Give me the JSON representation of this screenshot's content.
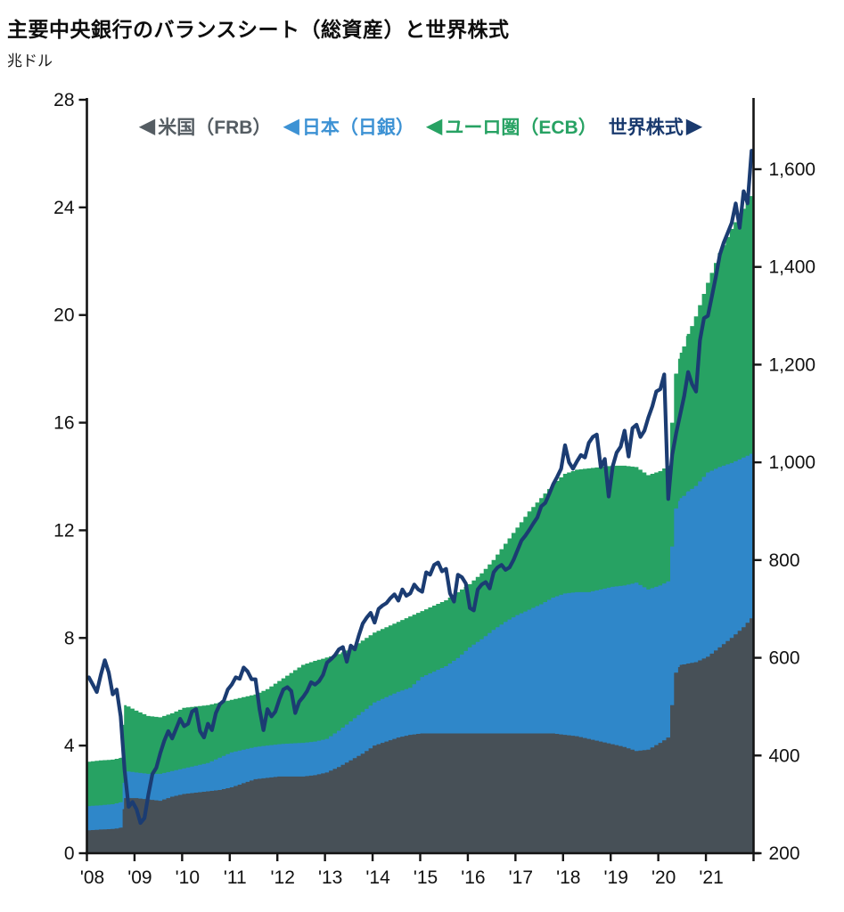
{
  "header": {
    "title": "主要中央銀行のバランスシート（総資産）と世界株式",
    "unit_label": "兆ドル"
  },
  "legend": {
    "items": [
      {
        "id": "us-frb",
        "marker_glyph": "◀",
        "marker_side": "before",
        "label": "米国（FRB）",
        "color": "#555d63"
      },
      {
        "id": "japan-boj",
        "marker_glyph": "◀",
        "marker_side": "before",
        "label": "日本（日銀）",
        "color": "#3d92d4"
      },
      {
        "id": "euro-ecb",
        "marker_glyph": "◀",
        "marker_side": "before",
        "label": "ユーロ圏（ECB）",
        "color": "#27a263"
      },
      {
        "id": "world-equity",
        "marker_glyph": "▶",
        "marker_side": "after",
        "label": "世界株式",
        "color": "#1a3a6e"
      }
    ]
  },
  "chart_data": {
    "type": "area",
    "title": "主要中央銀行のバランスシート（総資産）と世界株式",
    "subtitle_unit": "兆ドル",
    "stack": {
      "unit": "trillion USD (left axis)",
      "x": [
        2008.0,
        2008.25,
        2008.5,
        2008.7,
        2008.78,
        2009.0,
        2009.25,
        2009.5,
        2009.75,
        2010.0,
        2010.25,
        2010.5,
        2010.75,
        2011.0,
        2011.25,
        2011.5,
        2011.75,
        2012.0,
        2012.25,
        2012.5,
        2012.75,
        2013.0,
        2013.25,
        2013.5,
        2013.75,
        2014.0,
        2014.25,
        2014.5,
        2014.75,
        2015.0,
        2015.25,
        2015.5,
        2015.75,
        2016.0,
        2016.25,
        2016.5,
        2016.75,
        2017.0,
        2017.25,
        2017.5,
        2017.75,
        2018.0,
        2018.25,
        2018.5,
        2018.75,
        2019.0,
        2019.25,
        2019.5,
        2019.75,
        2020.0,
        2020.17,
        2020.25,
        2020.33,
        2020.45,
        2020.6,
        2020.75,
        2021.0,
        2021.25,
        2021.5,
        2021.75,
        2021.98
      ],
      "series": [
        {
          "name": "米国（FRB）",
          "color": "#475057",
          "values": [
            0.85,
            0.88,
            0.9,
            0.95,
            2.05,
            2.05,
            2.0,
            1.95,
            2.1,
            2.2,
            2.25,
            2.3,
            2.35,
            2.45,
            2.6,
            2.75,
            2.8,
            2.85,
            2.85,
            2.85,
            2.9,
            3.0,
            3.2,
            3.45,
            3.7,
            4.0,
            4.15,
            4.3,
            4.4,
            4.45,
            4.45,
            4.45,
            4.45,
            4.45,
            4.45,
            4.45,
            4.45,
            4.45,
            4.45,
            4.45,
            4.45,
            4.4,
            4.35,
            4.25,
            4.15,
            4.05,
            3.95,
            3.8,
            3.85,
            4.1,
            4.3,
            5.5,
            6.7,
            7.0,
            7.05,
            7.1,
            7.3,
            7.65,
            8.0,
            8.4,
            8.85
          ]
        },
        {
          "name": "日本（日銀）",
          "color": "#2f87c9",
          "values": [
            0.9,
            0.9,
            0.92,
            0.95,
            1.0,
            0.95,
            0.95,
            1.0,
            0.95,
            0.95,
            1.0,
            1.05,
            1.2,
            1.3,
            1.25,
            1.2,
            1.2,
            1.2,
            1.23,
            1.25,
            1.25,
            1.25,
            1.35,
            1.45,
            1.55,
            1.6,
            1.65,
            1.7,
            1.75,
            2.1,
            2.3,
            2.5,
            2.8,
            3.2,
            3.5,
            3.85,
            4.15,
            4.4,
            4.6,
            4.8,
            5.05,
            5.25,
            5.35,
            5.45,
            5.65,
            5.85,
            6.0,
            6.25,
            5.95,
            5.85,
            5.8,
            5.9,
            6.1,
            6.2,
            6.4,
            6.55,
            6.85,
            6.7,
            6.5,
            6.3,
            6.05
          ]
        },
        {
          "name": "ユーロ圏（ECB）",
          "color": "#27a263",
          "values": [
            1.65,
            1.67,
            1.66,
            1.65,
            2.45,
            2.3,
            2.15,
            2.1,
            2.15,
            2.25,
            2.2,
            2.15,
            2.05,
            1.95,
            1.95,
            1.95,
            2.1,
            2.35,
            2.62,
            2.9,
            3.0,
            3.02,
            2.85,
            2.7,
            2.65,
            2.6,
            2.6,
            2.6,
            2.65,
            2.45,
            2.45,
            2.45,
            2.45,
            2.35,
            2.45,
            2.6,
            2.9,
            3.25,
            3.65,
            3.95,
            4.2,
            4.45,
            4.55,
            4.6,
            4.55,
            4.5,
            4.45,
            4.3,
            4.25,
            4.25,
            4.3,
            4.6,
            5.0,
            5.4,
            5.85,
            6.3,
            7.05,
            7.95,
            8.7,
            9.25,
            9.7
          ]
        }
      ]
    },
    "line": {
      "name": "世界株式",
      "axis": "right",
      "color": "#1b3c72",
      "x_start": 2008.042,
      "x_step_years": 0.083333,
      "values": [
        560,
        545,
        530,
        565,
        595,
        570,
        525,
        535,
        480,
        370,
        295,
        305,
        290,
        262,
        272,
        320,
        362,
        375,
        405,
        430,
        450,
        435,
        455,
        475,
        460,
        465,
        490,
        495,
        450,
        437,
        465,
        452,
        487,
        505,
        512,
        535,
        545,
        560,
        557,
        580,
        572,
        556,
        556,
        495,
        452,
        495,
        480,
        490,
        515,
        535,
        540,
        532,
        487,
        510,
        520,
        532,
        550,
        545,
        552,
        565,
        590,
        597,
        605,
        617,
        622,
        592,
        625,
        617,
        645,
        670,
        682,
        692,
        672,
        700,
        707,
        712,
        722,
        730,
        717,
        740,
        727,
        732,
        750,
        740,
        735,
        775,
        770,
        790,
        795,
        777,
        782,
        732,
        715,
        770,
        765,
        752,
        702,
        697,
        740,
        750,
        755,
        742,
        775,
        785,
        790,
        780,
        785,
        800,
        820,
        840,
        850,
        862,
        875,
        887,
        910,
        917,
        935,
        955,
        970,
        987,
        1035,
        1000,
        987,
        1002,
        1015,
        1010,
        1040,
        1052,
        1057,
        990,
        1007,
        930,
        992,
        1020,
        1032,
        1065,
        1012,
        1070,
        1077,
        1052,
        1065,
        1092,
        1115,
        1145,
        1150,
        1180,
        925,
        1015,
        1060,
        1097,
        1135,
        1185,
        1160,
        1145,
        1250,
        1295,
        1300,
        1340,
        1380,
        1425,
        1450,
        1470,
        1490,
        1530,
        1480,
        1555,
        1530,
        1638
      ]
    },
    "axes": {
      "x": {
        "range": [
          2008,
          2022
        ],
        "tick_values": [
          2008,
          2009,
          2010,
          2011,
          2012,
          2013,
          2014,
          2015,
          2016,
          2017,
          2018,
          2019,
          2020,
          2021,
          2022
        ],
        "tick_labels": [
          "'08",
          "'09",
          "'10",
          "'11",
          "'12",
          "'13",
          "'14",
          "'15",
          "'16",
          "'17",
          "'18",
          "'19",
          "'20",
          "'21"
        ]
      },
      "left": {
        "label": "兆ドル",
        "range": [
          0,
          28
        ],
        "tick_values": [
          0,
          4,
          8,
          12,
          16,
          20,
          24,
          28
        ],
        "tick_labels": [
          "0",
          "4",
          "8",
          "12",
          "16",
          "20",
          "24",
          "28"
        ]
      },
      "right": {
        "range_shown": [
          200,
          1600
        ],
        "tick_values": [
          200,
          400,
          600,
          800,
          1000,
          1200,
          1400,
          1600
        ],
        "tick_labels": [
          "200",
          "400",
          "600",
          "800",
          "1,000",
          "1,200",
          "1,400",
          "1,600"
        ]
      },
      "grid": false,
      "legend_position": "top-inside"
    }
  }
}
